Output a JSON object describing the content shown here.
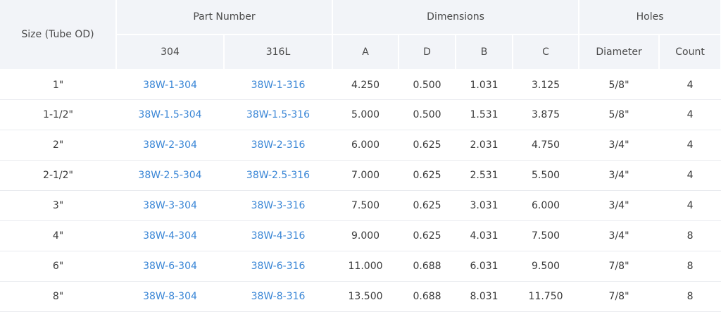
{
  "header": {
    "size": "Size (Tube OD)",
    "part_number": "Part Number",
    "dimensions": "Dimensions",
    "holes": "Holes",
    "sub": {
      "p304": "304",
      "p316": "316L",
      "a": "A",
      "d": "D",
      "b": "B",
      "c": "C",
      "diameter": "Diameter",
      "count": "Count"
    }
  },
  "rows": [
    {
      "size": "1\"",
      "p304": "38W-1-304",
      "p316": "38W-1-316",
      "a": "4.250",
      "d": "0.500",
      "b": "1.031",
      "c": "3.125",
      "diameter": "5/8\"",
      "count": "4"
    },
    {
      "size": "1-1/2\"",
      "p304": "38W-1.5-304",
      "p316": "38W-1.5-316",
      "a": "5.000",
      "d": "0.500",
      "b": "1.531",
      "c": "3.875",
      "diameter": "5/8\"",
      "count": "4"
    },
    {
      "size": "2\"",
      "p304": "38W-2-304",
      "p316": "38W-2-316",
      "a": "6.000",
      "d": "0.625",
      "b": "2.031",
      "c": "4.750",
      "diameter": "3/4\"",
      "count": "4"
    },
    {
      "size": "2-1/2\"",
      "p304": "38W-2.5-304",
      "p316": "38W-2.5-316",
      "a": "7.000",
      "d": "0.625",
      "b": "2.531",
      "c": "5.500",
      "diameter": "3/4\"",
      "count": "4"
    },
    {
      "size": "3\"",
      "p304": "38W-3-304",
      "p316": "38W-3-316",
      "a": "7.500",
      "d": "0.625",
      "b": "3.031",
      "c": "6.000",
      "diameter": "3/4\"",
      "count": "4"
    },
    {
      "size": "4\"",
      "p304": "38W-4-304",
      "p316": "38W-4-316",
      "a": "9.000",
      "d": "0.625",
      "b": "4.031",
      "c": "7.500",
      "diameter": "3/4\"",
      "count": "8"
    },
    {
      "size": "6\"",
      "p304": "38W-6-304",
      "p316": "38W-6-316",
      "a": "11.000",
      "d": "0.688",
      "b": "6.031",
      "c": "9.500",
      "diameter": "7/8\"",
      "count": "8"
    },
    {
      "size": "8\"",
      "p304": "38W-8-304",
      "p316": "38W-8-316",
      "a": "13.500",
      "d": "0.688",
      "b": "8.031",
      "c": "11.750",
      "diameter": "7/8\"",
      "count": "8"
    }
  ]
}
